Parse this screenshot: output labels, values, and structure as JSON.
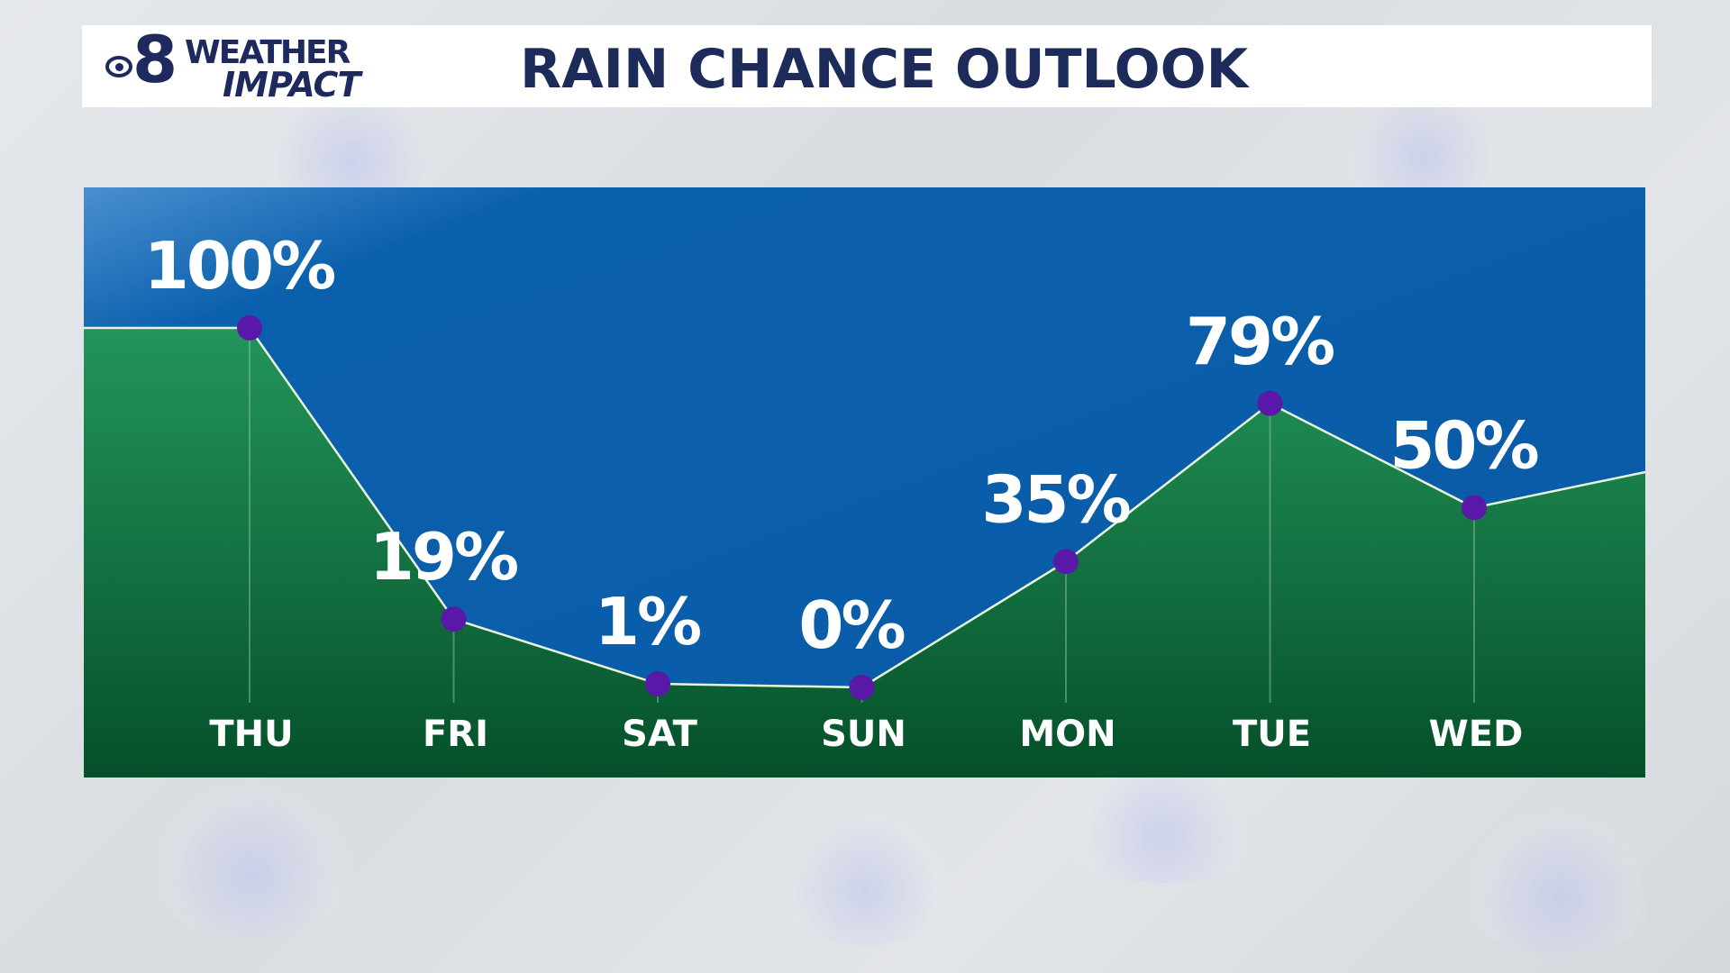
{
  "header": {
    "logo_text": "CBS 8 WEATHER IMPACT",
    "title": "RAIN CHANCE OUTLOOK"
  },
  "colors": {
    "sky": "#0a5eac",
    "ground_top": "#23955a",
    "ground_bottom": "#05502a",
    "point": "#5a18a8",
    "title": "#1c2b5a"
  },
  "chart_data": {
    "type": "area",
    "title": "RAIN CHANCE OUTLOOK",
    "categories": [
      "THU",
      "FRI",
      "SAT",
      "SUN",
      "MON",
      "TUE",
      "WED"
    ],
    "values": [
      100,
      19,
      1,
      0,
      35,
      79,
      50
    ],
    "labels": [
      "100%",
      "19%",
      "1%",
      "0%",
      "35%",
      "79%",
      "50%"
    ],
    "unit": "%",
    "ylim": [
      0,
      100
    ],
    "grid": false,
    "legend": "none"
  }
}
